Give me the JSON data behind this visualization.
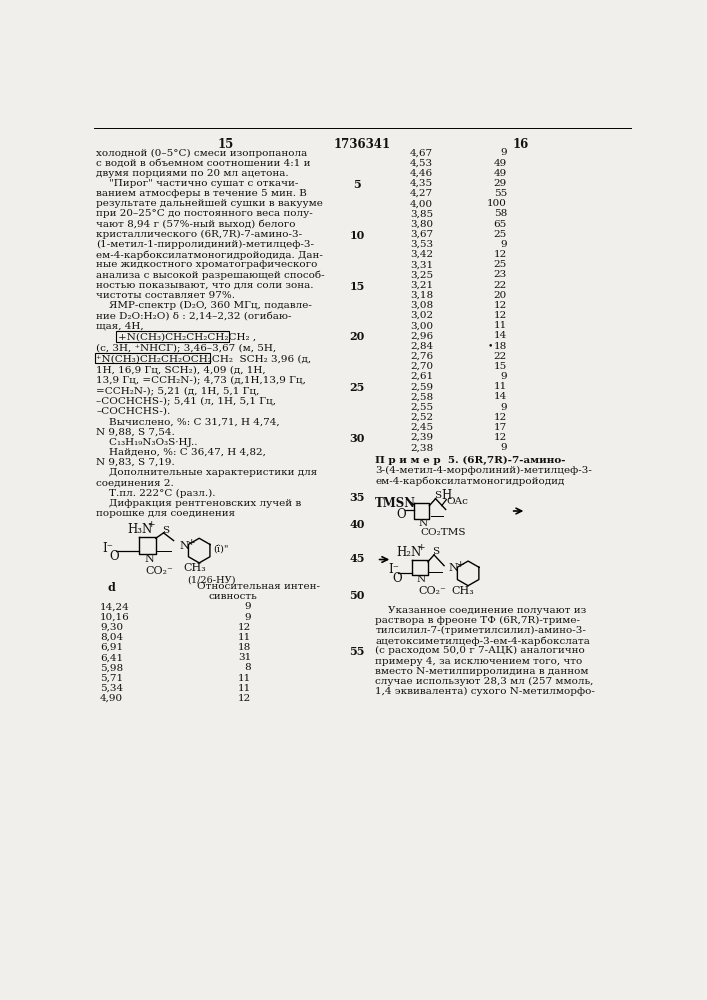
{
  "bg_color": "#f0efeb",
  "text_color": "#111111",
  "left_col_lines": [
    "холодной (0–5°C) смеси изопропанола",
    "с водой в объемном соотношении 4:1 и",
    "двумя порциями по 20 мл ацетона.",
    "    \"Пирог\" частично сушат с откачи-",
    "ванием атмосферы в течение 5 мин. В",
    "результате дальнейшей сушки в вакууме",
    "при 20–25°C до постоянного веса полу-",
    "чают 8,94 г (57%-ный выход) белого",
    "кристаллического (6R,7R)-7-амино-3-",
    "(1-метил-1-пирролидиний)-метилцеф-3-",
    "ем-4-карбоксилатмоногидройодида. Дан-",
    "ные жидкостного хроматографического",
    "анализа с высокой разрешающей способ-",
    "ностью показывают, что для соли зона.",
    "чистоты составляет 97%.",
    "    ЯМР-спектр (D₂O, 360 МГц, подавле-",
    "ние D₂O:H₂O) δ : 2,14–2,32 (огибаю-",
    "щая, 4Н,"
  ],
  "left_col_after_formula": [
    "(c, 3Н, +NCH₃); 3,46–3,67 (м, 5Н,",
    "+N(CH₃)CH₂CH₂OCH₂CH₂  SCH₂ 3,96 (д,"
  ],
  "left_col_rest": [
    "1Н, 16,9 Гц, SCH₂), 4,09 (д, 1Н,",
    "13,9 Гц, =CCH₂N-); 4,73 (д,1Н,13,9 Гц,",
    "=CCH₂N-); 5,21 (д, 1Н, 5,1 Гц,",
    "–COCHCHS-); 5,41 (л, 1Н, 5,1 Гц,",
    "–COCHCHS-).",
    "    Вычислено, %: C 31,71, H 4,74,",
    "N 9,88, S 7,54.",
    "    C₁₃H₁₉N₃O₃S·HJ..",
    "    Найдено, %: C 36,47, H 4,82,",
    "N 9,83, S 7,19.",
    "    Дополнительные характеристики для",
    "соединения 2.",
    "    Т.пл. 222°C (разл.).",
    "    Дифракция рентгеновских лучей в",
    "порошке для соединения"
  ],
  "left_table_data": [
    [
      "14,24",
      "9"
    ],
    [
      "10,16",
      "9"
    ],
    [
      "9,30",
      "12"
    ],
    [
      "8,04",
      "11"
    ],
    [
      "6,91",
      "18"
    ],
    [
      "6,41",
      "31"
    ],
    [
      "5,98",
      "8"
    ],
    [
      "5,71",
      "11"
    ],
    [
      "5,34",
      "11"
    ],
    [
      "4,90",
      "12"
    ]
  ],
  "right_d_intensity": [
    [
      "4,67",
      "9"
    ],
    [
      "4,53",
      "49"
    ],
    [
      "4,46",
      "49"
    ],
    [
      "4,35",
      "29"
    ],
    [
      "4,27",
      "55"
    ],
    [
      "4,00",
      "100"
    ],
    [
      "3,85",
      "58"
    ],
    [
      "3,80",
      "65"
    ],
    [
      "3,67",
      "25"
    ],
    [
      "3,53",
      "9"
    ],
    [
      "3,42",
      "12"
    ],
    [
      "3,31",
      "25"
    ],
    [
      "3,25",
      "23"
    ],
    [
      "3,21",
      "22"
    ],
    [
      "3,18",
      "20"
    ],
    [
      "3,08",
      "12"
    ],
    [
      "3,02",
      "12"
    ],
    [
      "3,00",
      "11"
    ],
    [
      "2,96",
      "14"
    ],
    [
      "2,84",
      "18"
    ],
    [
      "2,76",
      "22"
    ],
    [
      "2,70",
      "15"
    ],
    [
      "2,61",
      "9"
    ],
    [
      "2,59",
      "11"
    ],
    [
      "2,58",
      "14"
    ],
    [
      "2,55",
      "9"
    ],
    [
      "2,52",
      "12"
    ],
    [
      "2,45",
      "17"
    ],
    [
      "2,39",
      "12"
    ],
    [
      "2,38",
      "9"
    ]
  ],
  "right_bottom_lines": [
    "    Указанное соединение получают из",
    "раствора в фреоне ТФ (6R,7R)-триме-",
    "тилсилил-7-(триметилсилил)-амино-3-",
    "ацетоксиметилцеф-3-ем-4-карбокслата",
    "(с расходом 50,0 г 7-АЦК) аналогично",
    "примеру 4, за исключением того, что",
    "вместо N-метилпирролидина в данном",
    "случае используют 28,3 мл (257 ммоль,",
    "1,4 эквивалента) сухого N-метилморфо-"
  ]
}
